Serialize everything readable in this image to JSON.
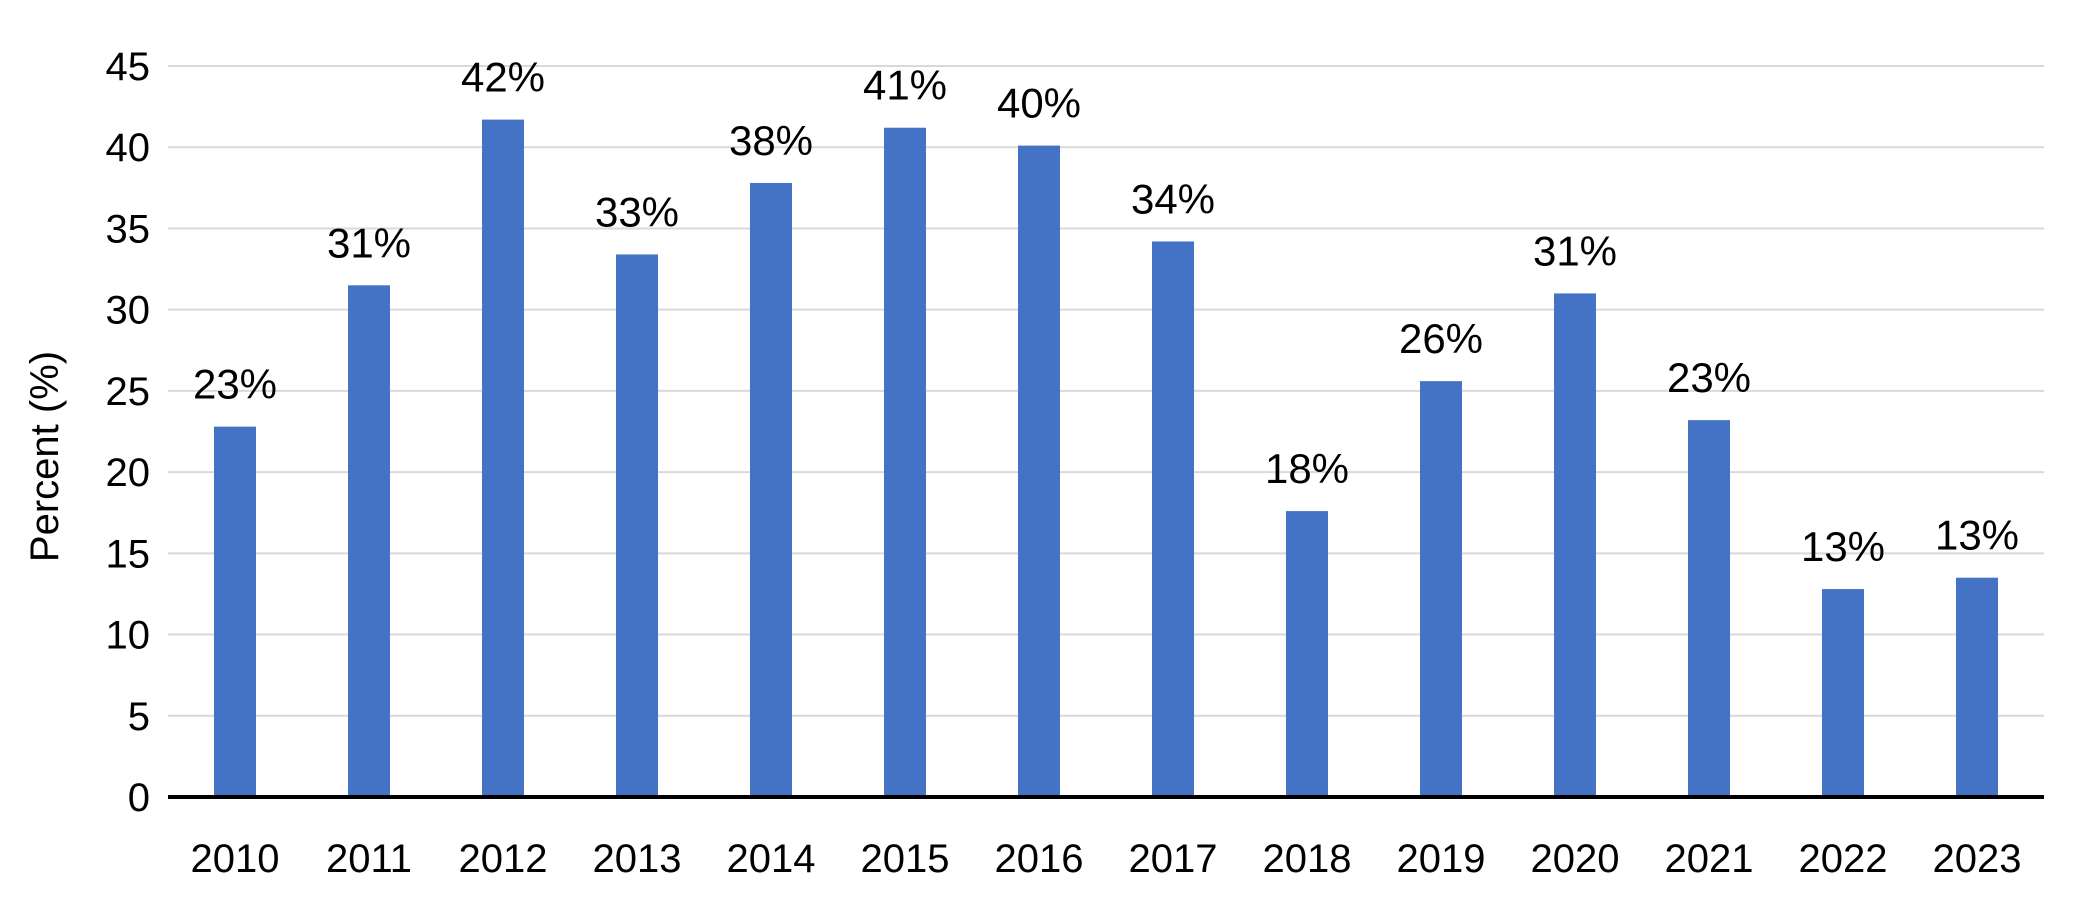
{
  "chart_data": {
    "type": "bar",
    "title": "",
    "xlabel": "",
    "ylabel": "Percent (%)",
    "ylim": [
      0,
      45
    ],
    "yticks": [
      0,
      5,
      10,
      15,
      20,
      25,
      30,
      35,
      40,
      45
    ],
    "grid": true,
    "legend": "none",
    "bar_color": "#4472C4",
    "categories": [
      "2010",
      "2011",
      "2012",
      "2013",
      "2014",
      "2015",
      "2016",
      "2017",
      "2018",
      "2019",
      "2020",
      "2021",
      "2022",
      "2023"
    ],
    "values": [
      22.8,
      31.5,
      41.7,
      33.4,
      37.8,
      41.2,
      40.1,
      34.2,
      17.6,
      25.6,
      31.0,
      23.2,
      12.8,
      13.5
    ],
    "data_labels": [
      "23%",
      "31%",
      "42%",
      "33%",
      "38%",
      "41%",
      "40%",
      "34%",
      "18%",
      "26%",
      "31%",
      "23%",
      "13%",
      "13%"
    ]
  }
}
